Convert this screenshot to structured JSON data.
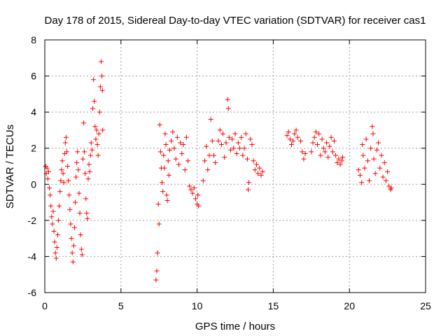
{
  "chart_data": {
    "type": "scatter",
    "title": "Day 178 of 2015, Sidereal Day-to-day VTEC variation (SDTVAR) for receiver cas1",
    "xlabel": "GPS time / hours",
    "ylabel": "SDTVAR / TECUs",
    "xlim": [
      0,
      25
    ],
    "ylim": [
      -6,
      8
    ],
    "xticks": [
      "0",
      "5",
      "10",
      "15",
      "20",
      "25"
    ],
    "yticks": [
      "-6",
      "-4",
      "-2",
      "0",
      "2",
      "4",
      "6",
      "8"
    ],
    "grid": true,
    "marker": "+",
    "series": [
      {
        "name": "SDTVAR",
        "color": "#ff0000",
        "points": [
          [
            0.05,
            1.0
          ],
          [
            0.1,
            0.6
          ],
          [
            0.15,
            0.9
          ],
          [
            0.2,
            0.3
          ],
          [
            0.25,
            0.7
          ],
          [
            0.3,
            -0.2
          ],
          [
            0.35,
            -0.6
          ],
          [
            0.4,
            -1.2
          ],
          [
            0.45,
            -1.8
          ],
          [
            0.5,
            -2.2
          ],
          [
            0.55,
            -1.5
          ],
          [
            0.6,
            -2.6
          ],
          [
            0.65,
            -3.2
          ],
          [
            0.7,
            -3.8
          ],
          [
            0.75,
            -4.1
          ],
          [
            0.8,
            -3.5
          ],
          [
            0.85,
            -2.8
          ],
          [
            0.9,
            -2.0
          ],
          [
            0.95,
            -1.2
          ],
          [
            1.0,
            -0.4
          ],
          [
            1.05,
            0.2
          ],
          [
            1.1,
            0.8
          ],
          [
            1.15,
            1.3
          ],
          [
            1.2,
            0.6
          ],
          [
            1.25,
            0.1
          ],
          [
            1.3,
            1.7
          ],
          [
            1.35,
            2.3
          ],
          [
            1.4,
            2.6
          ],
          [
            1.45,
            1.8
          ],
          [
            1.5,
            1.0
          ],
          [
            1.55,
            0.2
          ],
          [
            1.6,
            -0.6
          ],
          [
            1.65,
            -1.4
          ],
          [
            1.7,
            -2.2
          ],
          [
            1.75,
            -3.0
          ],
          [
            1.8,
            -3.8
          ],
          [
            1.85,
            -4.3
          ],
          [
            1.9,
            -3.4
          ],
          [
            1.95,
            -2.4
          ],
          [
            2.0,
            -1.0
          ],
          [
            2.05,
            0.4
          ],
          [
            2.1,
            1.2
          ],
          [
            2.15,
            1.8
          ],
          [
            2.2,
            0.8
          ],
          [
            2.25,
            -0.5
          ],
          [
            2.3,
            -1.6
          ],
          [
            2.35,
            -2.8
          ],
          [
            2.4,
            -3.6
          ],
          [
            2.45,
            -3.9
          ],
          [
            2.5,
            1.4
          ],
          [
            2.55,
            3.4
          ],
          [
            2.6,
            1.8
          ],
          [
            2.65,
            0.6
          ],
          [
            2.7,
            -0.8
          ],
          [
            2.75,
            -1.6
          ],
          [
            2.8,
            -1.9
          ],
          [
            2.85,
            0.3
          ],
          [
            2.9,
            1.1
          ],
          [
            2.95,
            0.7
          ],
          [
            3.0,
            1.6
          ],
          [
            3.05,
            2.3
          ],
          [
            3.1,
            1.9
          ],
          [
            3.15,
            4.2
          ],
          [
            3.2,
            5.8
          ],
          [
            3.25,
            4.6
          ],
          [
            3.3,
            3.2
          ],
          [
            3.35,
            2.5
          ],
          [
            3.4,
            3.0
          ],
          [
            3.45,
            2.2
          ],
          [
            3.5,
            1.6
          ],
          [
            3.55,
            2.8
          ],
          [
            3.6,
            4.0
          ],
          [
            3.65,
            5.4
          ],
          [
            3.7,
            6.8
          ],
          [
            3.75,
            6.0
          ],
          [
            3.78,
            5.2
          ],
          [
            3.8,
            3.0
          ],
          [
            7.3,
            -5.3
          ],
          [
            7.35,
            -4.8
          ],
          [
            7.4,
            -3.8
          ],
          [
            7.45,
            -1.1
          ],
          [
            7.5,
            -2.2
          ],
          [
            7.55,
            3.3
          ],
          [
            7.6,
            1.8
          ],
          [
            7.65,
            0.9
          ],
          [
            7.7,
            0.1
          ],
          [
            7.75,
            -0.4
          ],
          [
            7.8,
            1.6
          ],
          [
            7.85,
            0.9
          ],
          [
            7.9,
            2.8
          ],
          [
            7.95,
            2.2
          ],
          [
            8.0,
            -0.6
          ],
          [
            8.05,
            -0.9
          ],
          [
            8.1,
            1.3
          ],
          [
            8.15,
            0.5
          ],
          [
            8.2,
            1.9
          ],
          [
            8.3,
            2.4
          ],
          [
            8.4,
            2.9
          ],
          [
            8.5,
            2.0
          ],
          [
            8.6,
            1.4
          ],
          [
            8.7,
            2.6
          ],
          [
            8.8,
            1.1
          ],
          [
            8.9,
            2.3
          ],
          [
            9.0,
            1.7
          ],
          [
            9.1,
            2.2
          ],
          [
            9.2,
            0.8
          ],
          [
            9.3,
            2.6
          ],
          [
            9.4,
            1.3
          ],
          [
            9.5,
            -0.1
          ],
          [
            9.6,
            -0.3
          ],
          [
            9.7,
            -0.5
          ],
          [
            9.8,
            -0.2
          ],
          [
            9.9,
            -0.8
          ],
          [
            10.0,
            -1.1
          ],
          [
            10.05,
            -0.6
          ],
          [
            10.1,
            -1.2
          ],
          [
            10.4,
            0.2
          ],
          [
            10.5,
            1.3
          ],
          [
            10.6,
            2.1
          ],
          [
            10.7,
            0.8
          ],
          [
            10.8,
            1.6
          ],
          [
            10.9,
            3.6
          ],
          [
            11.0,
            2.4
          ],
          [
            11.1,
            1.6
          ],
          [
            11.2,
            1.2
          ],
          [
            11.4,
            2.4
          ],
          [
            11.5,
            3.0
          ],
          [
            11.6,
            2.2
          ],
          [
            11.7,
            2.8
          ],
          [
            11.8,
            1.5
          ],
          [
            11.9,
            2.3
          ],
          [
            12.0,
            4.7
          ],
          [
            12.05,
            4.2
          ],
          [
            12.1,
            2.6
          ],
          [
            12.2,
            1.9
          ],
          [
            12.3,
            2.5
          ],
          [
            12.4,
            2.0
          ],
          [
            12.5,
            2.8
          ],
          [
            12.6,
            1.7
          ],
          [
            12.7,
            2.3
          ],
          [
            12.8,
            2.0
          ],
          [
            12.9,
            2.6
          ],
          [
            13.0,
            1.6
          ],
          [
            13.1,
            2.0
          ],
          [
            13.2,
            2.8
          ],
          [
            13.3,
            1.4
          ],
          [
            13.35,
            -0.3
          ],
          [
            13.4,
            0.1
          ],
          [
            13.5,
            2.5
          ],
          [
            13.6,
            2.2
          ],
          [
            13.7,
            1.3
          ],
          [
            13.8,
            0.8
          ],
          [
            13.9,
            1.1
          ],
          [
            14.0,
            0.6
          ],
          [
            14.1,
            0.9
          ],
          [
            14.2,
            0.5
          ],
          [
            14.3,
            0.7
          ],
          [
            15.9,
            2.7
          ],
          [
            16.0,
            2.9
          ],
          [
            16.1,
            2.5
          ],
          [
            16.2,
            2.2
          ],
          [
            16.3,
            2.4
          ],
          [
            16.4,
            2.8
          ],
          [
            16.5,
            3.0
          ],
          [
            16.6,
            2.6
          ],
          [
            16.8,
            2.4
          ],
          [
            16.9,
            1.8
          ],
          [
            17.0,
            1.4
          ],
          [
            17.1,
            1.7
          ],
          [
            17.5,
            1.8
          ],
          [
            17.6,
            2.3
          ],
          [
            17.7,
            2.6
          ],
          [
            17.8,
            2.9
          ],
          [
            17.9,
            2.2
          ],
          [
            18.0,
            2.8
          ],
          [
            18.1,
            1.6
          ],
          [
            18.2,
            2.5
          ],
          [
            18.3,
            2.0
          ],
          [
            18.4,
            1.8
          ],
          [
            18.5,
            2.3
          ],
          [
            18.6,
            1.5
          ],
          [
            18.7,
            2.1
          ],
          [
            18.8,
            2.6
          ],
          [
            18.9,
            1.8
          ],
          [
            19.0,
            2.4
          ],
          [
            19.1,
            1.6
          ],
          [
            19.2,
            1.2
          ],
          [
            19.3,
            1.4
          ],
          [
            19.4,
            1.1
          ],
          [
            19.5,
            1.3
          ],
          [
            19.55,
            1.5
          ],
          [
            20.6,
            0.8
          ],
          [
            20.7,
            0.5
          ],
          [
            20.8,
            0.1
          ],
          [
            20.85,
            2.2
          ],
          [
            20.9,
            1.6
          ],
          [
            21.0,
            0.9
          ],
          [
            21.1,
            2.5
          ],
          [
            21.2,
            1.3
          ],
          [
            21.3,
            0.2
          ],
          [
            21.4,
            2.0
          ],
          [
            21.5,
            3.2
          ],
          [
            21.55,
            2.8
          ],
          [
            21.6,
            1.4
          ],
          [
            21.7,
            0.6
          ],
          [
            21.8,
            1.9
          ],
          [
            21.9,
            2.3
          ],
          [
            22.0,
            0.9
          ],
          [
            22.1,
            1.6
          ],
          [
            22.2,
            0.4
          ],
          [
            22.3,
            1.2
          ],
          [
            22.4,
            0.2
          ],
          [
            22.5,
            0.7
          ],
          [
            22.6,
            -0.1
          ],
          [
            22.7,
            -0.3
          ],
          [
            22.75,
            -0.2
          ]
        ]
      }
    ]
  }
}
